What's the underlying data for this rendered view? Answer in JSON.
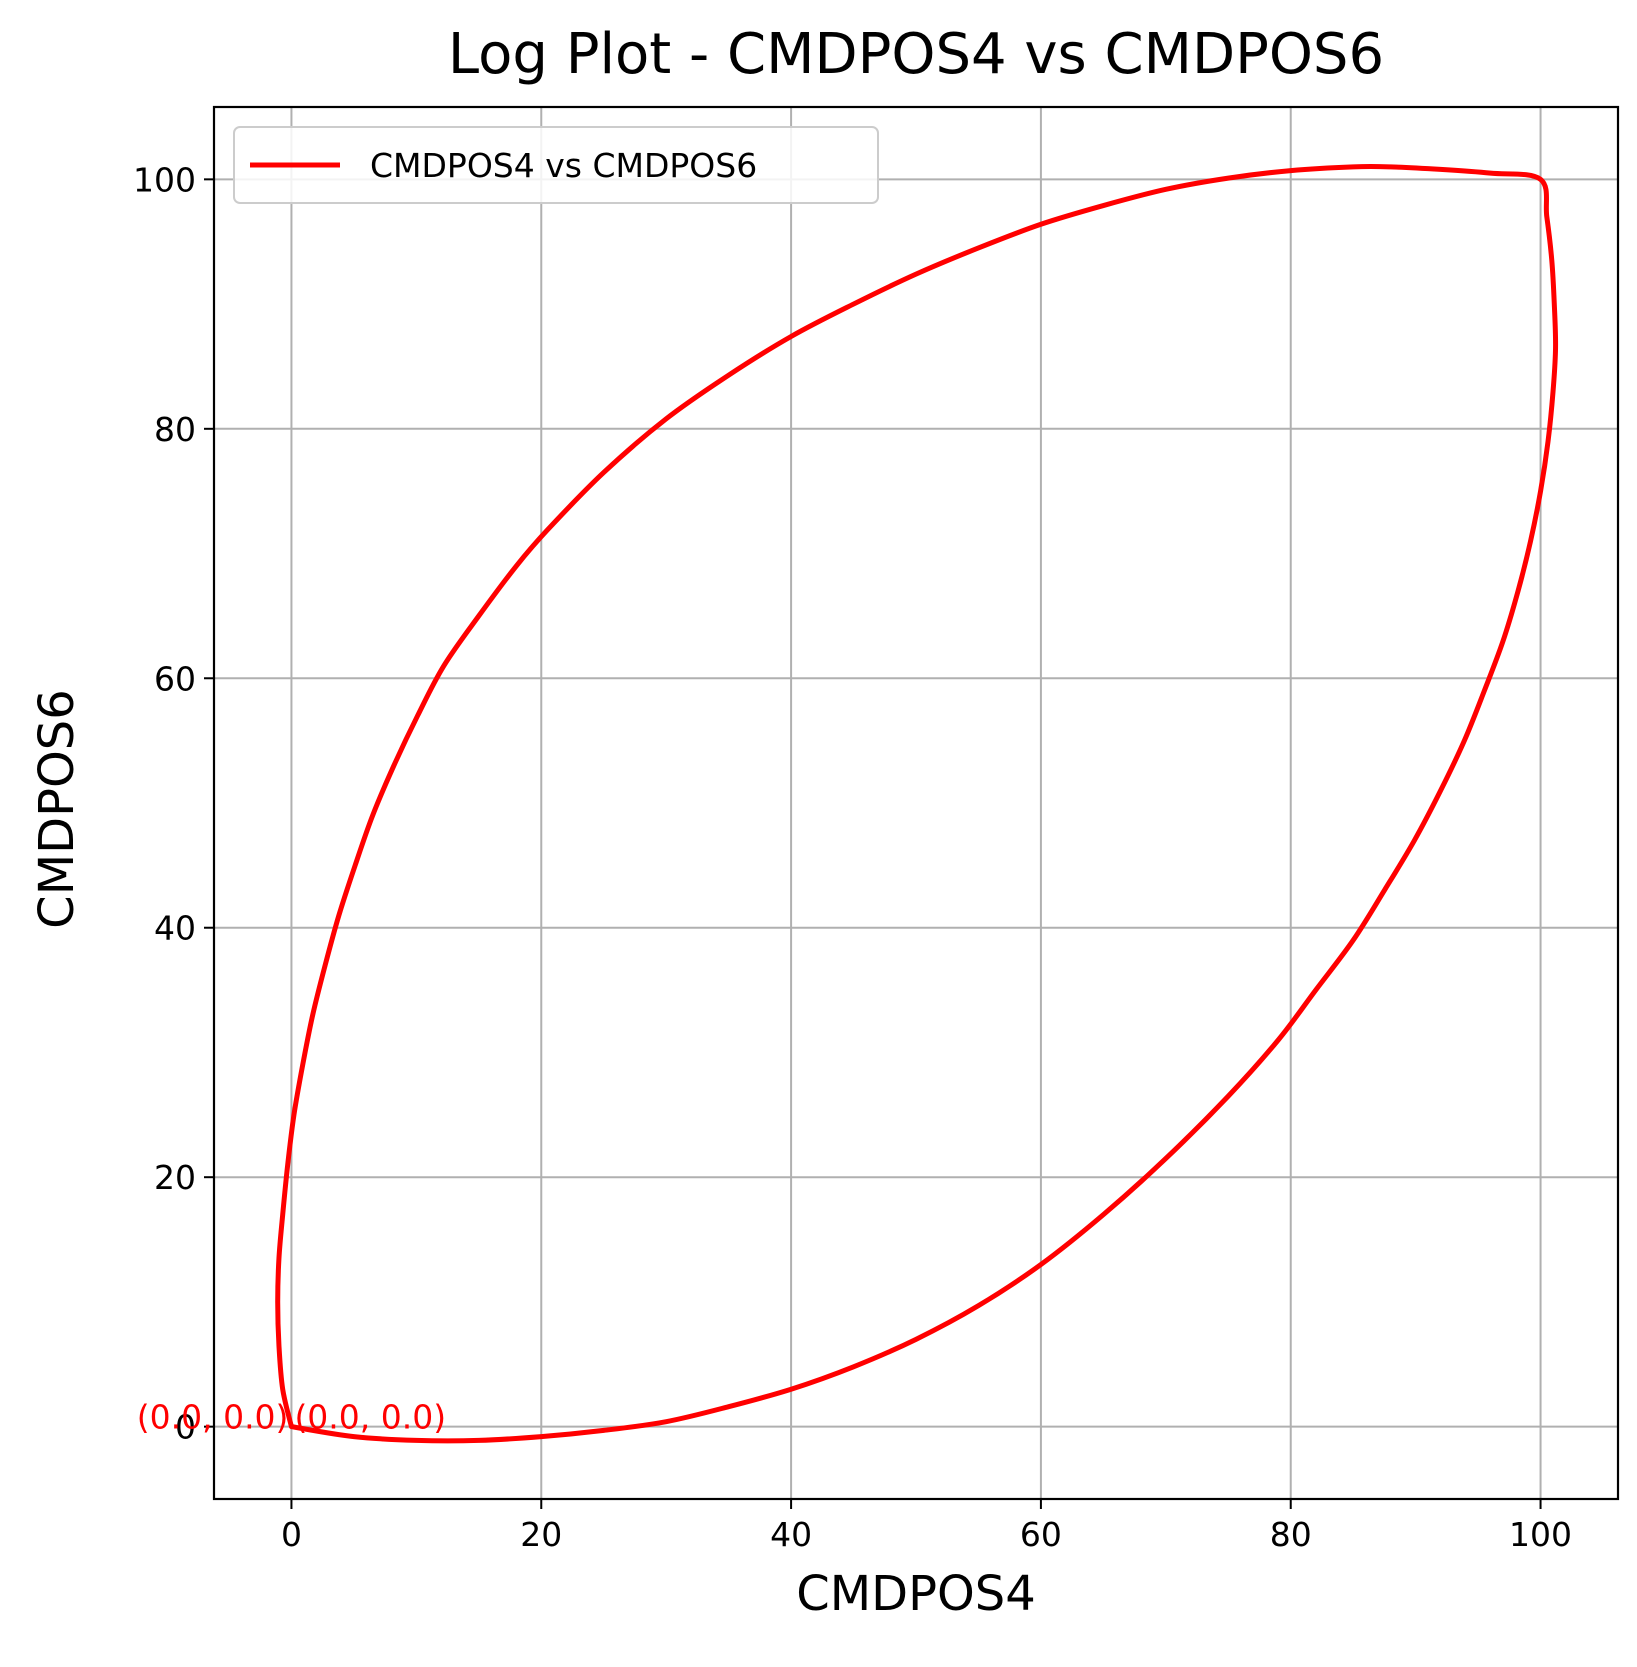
{
  "chart_data": {
    "type": "line",
    "title": "Log Plot - CMDPOS4 vs CMDPOS6",
    "xlabel": "CMDPOS4",
    "ylabel": "CMDPOS6",
    "xlim": [
      -6.2,
      106.2
    ],
    "ylim": [
      -5.8,
      105.8
    ],
    "x_ticks": [
      0,
      20,
      40,
      60,
      80,
      100
    ],
    "y_ticks": [
      0,
      20,
      40,
      60,
      80,
      100
    ],
    "grid": true,
    "legend_position": "top-left",
    "series": [
      {
        "name": "CMDPOS4 vs CMDPOS6",
        "color": "#ff0000",
        "points": [
          [
            0.0,
            0.0
          ],
          [
            -0.7,
            3.0
          ],
          [
            -1.0,
            6.5
          ],
          [
            -1.1,
            10.0
          ],
          [
            -1.0,
            13.5
          ],
          [
            -0.7,
            17.0
          ],
          [
            -0.3,
            21.0
          ],
          [
            0.2,
            25.0
          ],
          [
            0.9,
            29.0
          ],
          [
            1.7,
            33.0
          ],
          [
            2.7,
            37.0
          ],
          [
            3.8,
            41.0
          ],
          [
            5.1,
            45.0
          ],
          [
            6.5,
            49.0
          ],
          [
            8.2,
            53.0
          ],
          [
            10.1,
            57.0
          ],
          [
            12.2,
            61.0
          ],
          [
            15.0,
            65.0
          ],
          [
            18.0,
            69.0
          ],
          [
            20.5,
            71.9
          ],
          [
            25.0,
            76.5
          ],
          [
            30.0,
            80.8
          ],
          [
            35.0,
            84.3
          ],
          [
            40.0,
            87.4
          ],
          [
            45.0,
            90.0
          ],
          [
            50.0,
            92.4
          ],
          [
            55.0,
            94.5
          ],
          [
            60.0,
            96.4
          ],
          [
            65.0,
            97.9
          ],
          [
            70.0,
            99.2
          ],
          [
            75.0,
            100.1
          ],
          [
            80.0,
            100.7
          ],
          [
            85.0,
            101.0
          ],
          [
            88.0,
            101.0
          ],
          [
            92.0,
            100.8
          ],
          [
            96.0,
            100.5
          ],
          [
            100.0,
            100.0
          ],
          [
            100.5,
            97.0
          ],
          [
            100.9,
            93.5
          ],
          [
            101.1,
            90.0
          ],
          [
            101.2,
            86.5
          ],
          [
            101.0,
            83.0
          ],
          [
            100.6,
            79.0
          ],
          [
            100.0,
            75.0
          ],
          [
            99.2,
            71.0
          ],
          [
            98.2,
            67.0
          ],
          [
            97.0,
            63.0
          ],
          [
            95.5,
            59.0
          ],
          [
            93.9,
            55.0
          ],
          [
            92.0,
            51.0
          ],
          [
            89.9,
            47.0
          ],
          [
            87.5,
            43.0
          ],
          [
            85.0,
            39.0
          ],
          [
            82.0,
            35.0
          ],
          [
            79.0,
            31.0
          ],
          [
            75.0,
            26.5
          ],
          [
            70.0,
            21.5
          ],
          [
            65.0,
            17.0
          ],
          [
            60.0,
            13.0
          ],
          [
            55.0,
            9.7
          ],
          [
            50.0,
            7.0
          ],
          [
            45.0,
            4.8
          ],
          [
            40.0,
            3.0
          ],
          [
            35.0,
            1.6
          ],
          [
            30.0,
            0.4
          ],
          [
            25.0,
            -0.3
          ],
          [
            20.0,
            -0.8
          ],
          [
            15.0,
            -1.1
          ],
          [
            10.0,
            -1.1
          ],
          [
            5.0,
            -0.8
          ],
          [
            0.0,
            0.0
          ]
        ]
      }
    ],
    "annotations": [
      {
        "text": "(0.0, 0.0)",
        "x": 0.0,
        "y": 0.0,
        "align": "end",
        "color": "#ff0000"
      },
      {
        "text": "(0.0, 0.0)",
        "x": 0.0,
        "y": 0.0,
        "align": "start",
        "color": "#ff0000"
      }
    ]
  }
}
